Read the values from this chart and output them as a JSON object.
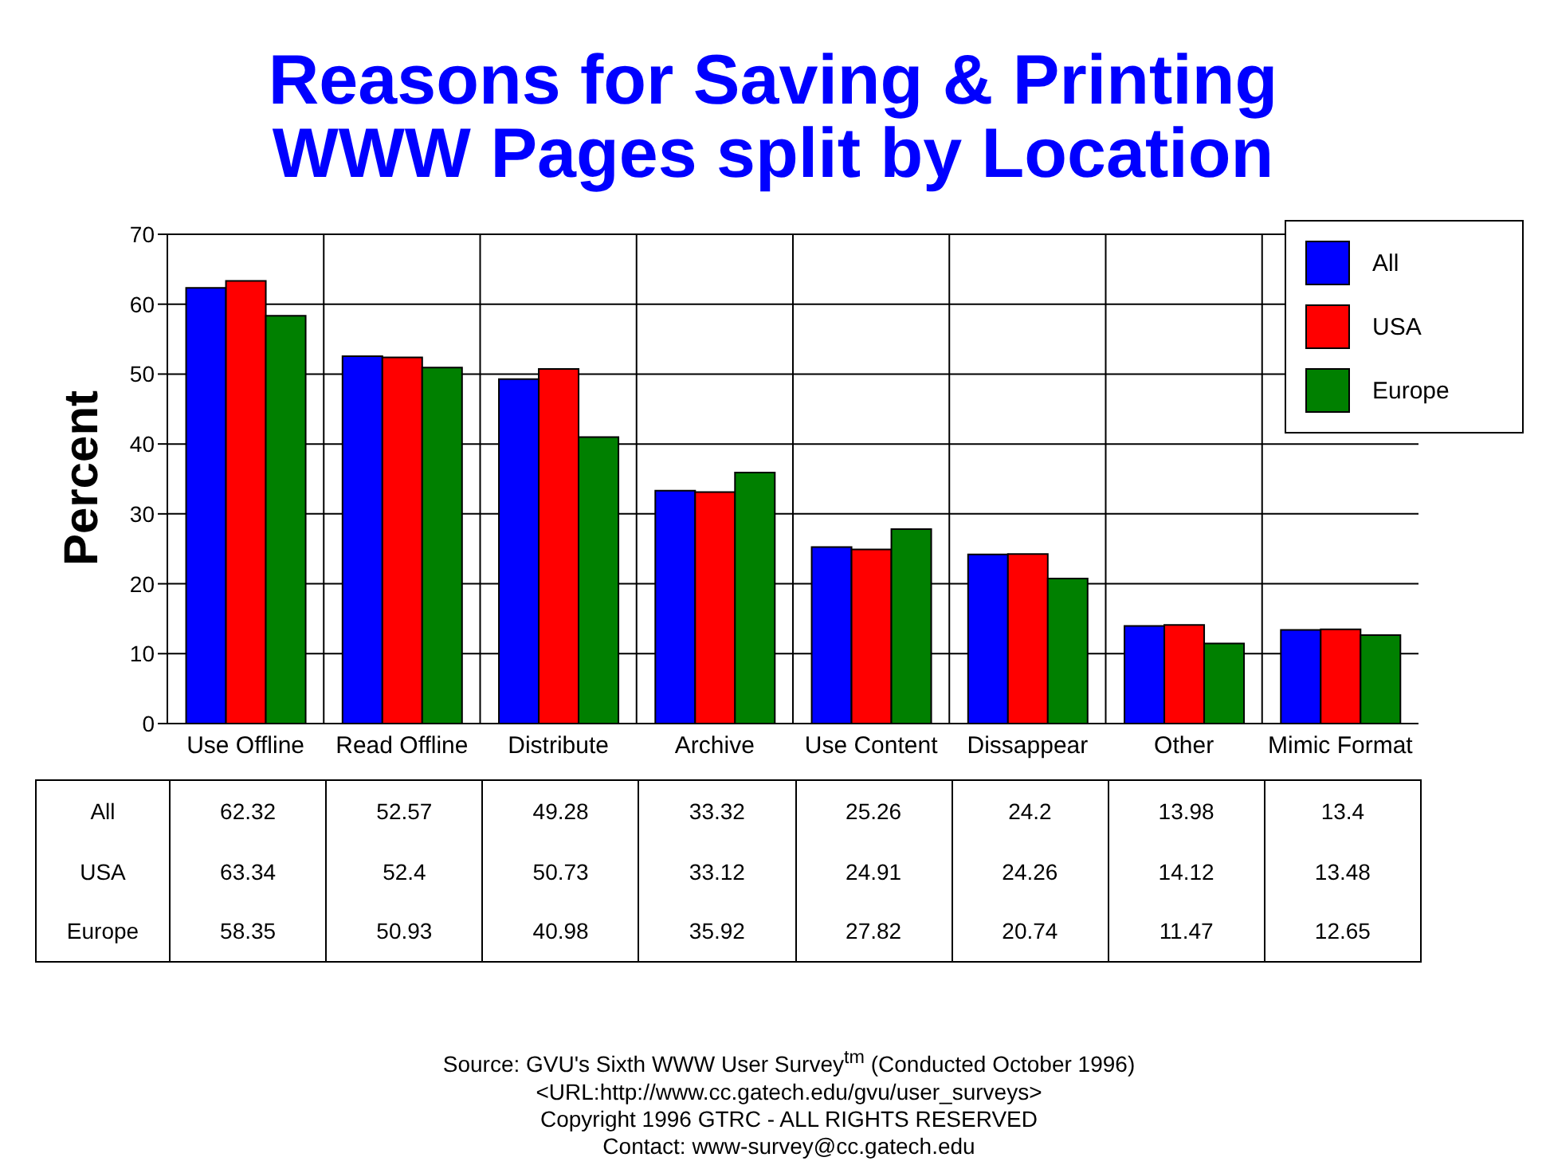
{
  "chart_data": {
    "type": "bar",
    "title": "Reasons for Saving & Printing\nWWW Pages split by Location",
    "ylabel": "Percent",
    "categories": [
      "Use Offline",
      "Read Offline",
      "Distribute",
      "Archive",
      "Use Content",
      "Dissappear",
      "Other",
      "Mimic Format"
    ],
    "series": [
      {
        "name": "All",
        "color": "#0000ff",
        "values": [
          62.32,
          52.57,
          49.28,
          33.32,
          25.26,
          24.2,
          13.98,
          13.4
        ]
      },
      {
        "name": "USA",
        "color": "#ff0000",
        "values": [
          63.34,
          52.4,
          50.73,
          33.12,
          24.91,
          24.26,
          14.12,
          13.48
        ]
      },
      {
        "name": "Europe",
        "color": "#008000",
        "values": [
          58.35,
          50.93,
          40.98,
          35.92,
          27.82,
          20.74,
          11.47,
          12.65
        ]
      }
    ],
    "ylim": [
      0,
      70
    ],
    "yticks": [
      0,
      10,
      20,
      30,
      40,
      50,
      60,
      70
    ],
    "grid": true,
    "legend": "top right",
    "data_labels": true,
    "annotations": [
      "Source: GVU's Sixth WWW User Survey$^{tm}$  (Conducted October 1996)",
      "<URL:http://www.cc.gatech.edu/gvu/user_surveys>",
      "Copyright 1996 GTRC - ALL RIGHTS RESERVED",
      "Contact: www-survey@cc.gatech.edu"
    ]
  }
}
